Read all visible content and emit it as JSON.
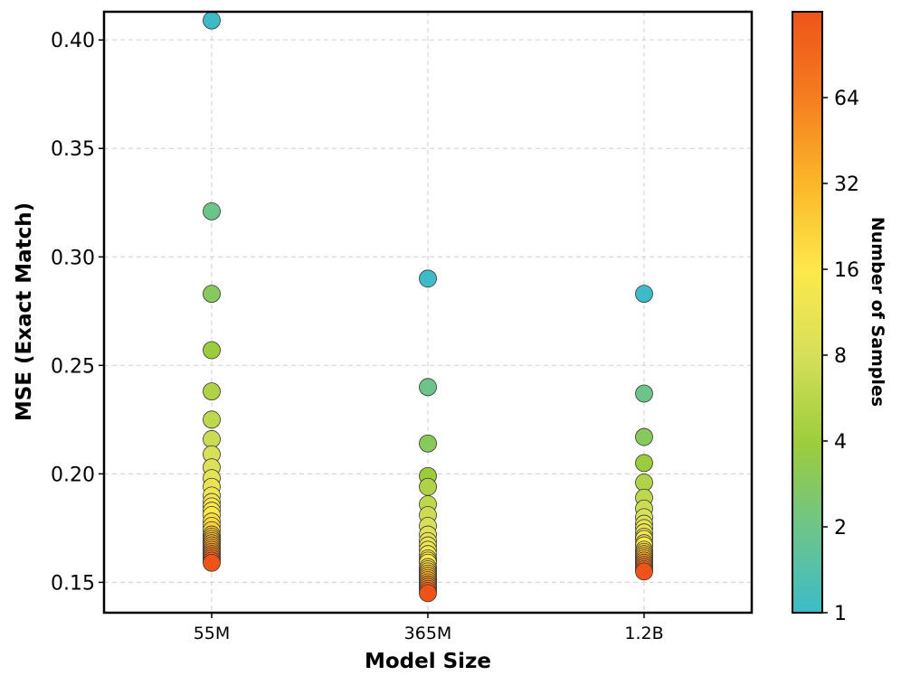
{
  "chart_data": {
    "type": "scatter",
    "xlabel": "Model Size",
    "ylabel": "MSE (Exact Match)",
    "categories": [
      "55M",
      "365M",
      "1.2B"
    ],
    "ylim": [
      0.136,
      0.413
    ],
    "yticks": [
      "0.15",
      "0.20",
      "0.25",
      "0.30",
      "0.35",
      "0.40"
    ],
    "ytick_values": [
      0.15,
      0.2,
      0.25,
      0.3,
      0.35,
      0.4
    ],
    "grid": true,
    "colorbar": {
      "label": "Number of Samples",
      "scale": "log2",
      "range": [
        1,
        128
      ],
      "ticks": [
        "1",
        "2",
        "4",
        "8",
        "16",
        "32",
        "64"
      ],
      "tick_values": [
        1,
        2,
        4,
        8,
        16,
        32,
        64
      ],
      "colormap": [
        "#3dbcc8",
        "#6dc48a",
        "#9ccc3c",
        "#d6e05a",
        "#fde84a",
        "#fbb829",
        "#f57c20",
        "#ee5419"
      ]
    },
    "series": [
      {
        "name": "55M",
        "points": [
          {
            "samples": 1,
            "mse": 0.409
          },
          {
            "samples": 2,
            "mse": 0.321
          },
          {
            "samples": 3,
            "mse": 0.283
          },
          {
            "samples": 4,
            "mse": 0.257
          },
          {
            "samples": 5,
            "mse": 0.238
          },
          {
            "samples": 6,
            "mse": 0.225
          },
          {
            "samples": 7,
            "mse": 0.216
          },
          {
            "samples": 8,
            "mse": 0.209
          },
          {
            "samples": 9,
            "mse": 0.203
          },
          {
            "samples": 10,
            "mse": 0.198
          },
          {
            "samples": 11,
            "mse": 0.194
          },
          {
            "samples": 12,
            "mse": 0.19
          },
          {
            "samples": 13,
            "mse": 0.187
          },
          {
            "samples": 14,
            "mse": 0.185
          },
          {
            "samples": 15,
            "mse": 0.183
          },
          {
            "samples": 16,
            "mse": 0.181
          },
          {
            "samples": 18,
            "mse": 0.178
          },
          {
            "samples": 20,
            "mse": 0.176
          },
          {
            "samples": 22,
            "mse": 0.174
          },
          {
            "samples": 24,
            "mse": 0.172
          },
          {
            "samples": 26,
            "mse": 0.171
          },
          {
            "samples": 28,
            "mse": 0.17
          },
          {
            "samples": 30,
            "mse": 0.169
          },
          {
            "samples": 32,
            "mse": 0.168
          },
          {
            "samples": 36,
            "mse": 0.167
          },
          {
            "samples": 40,
            "mse": 0.166
          },
          {
            "samples": 44,
            "mse": 0.165
          },
          {
            "samples": 48,
            "mse": 0.164
          },
          {
            "samples": 56,
            "mse": 0.163
          },
          {
            "samples": 64,
            "mse": 0.162
          },
          {
            "samples": 80,
            "mse": 0.161
          },
          {
            "samples": 96,
            "mse": 0.16
          },
          {
            "samples": 128,
            "mse": 0.159
          }
        ]
      },
      {
        "name": "365M",
        "points": [
          {
            "samples": 1,
            "mse": 0.29
          },
          {
            "samples": 2,
            "mse": 0.24
          },
          {
            "samples": 3,
            "mse": 0.214
          },
          {
            "samples": 4,
            "mse": 0.199
          },
          {
            "samples": 5,
            "mse": 0.194
          },
          {
            "samples": 6,
            "mse": 0.186
          },
          {
            "samples": 7,
            "mse": 0.181
          },
          {
            "samples": 8,
            "mse": 0.176
          },
          {
            "samples": 9,
            "mse": 0.172
          },
          {
            "samples": 10,
            "mse": 0.169
          },
          {
            "samples": 11,
            "mse": 0.167
          },
          {
            "samples": 12,
            "mse": 0.165
          },
          {
            "samples": 13,
            "mse": 0.163
          },
          {
            "samples": 14,
            "mse": 0.161
          },
          {
            "samples": 15,
            "mse": 0.16
          },
          {
            "samples": 16,
            "mse": 0.159
          },
          {
            "samples": 18,
            "mse": 0.157
          },
          {
            "samples": 20,
            "mse": 0.156
          },
          {
            "samples": 22,
            "mse": 0.155
          },
          {
            "samples": 24,
            "mse": 0.154
          },
          {
            "samples": 28,
            "mse": 0.153
          },
          {
            "samples": 32,
            "mse": 0.152
          },
          {
            "samples": 36,
            "mse": 0.151
          },
          {
            "samples": 40,
            "mse": 0.15
          },
          {
            "samples": 48,
            "mse": 0.149
          },
          {
            "samples": 56,
            "mse": 0.148
          },
          {
            "samples": 64,
            "mse": 0.147
          },
          {
            "samples": 96,
            "mse": 0.146
          },
          {
            "samples": 128,
            "mse": 0.145
          }
        ]
      },
      {
        "name": "1.2B",
        "points": [
          {
            "samples": 1,
            "mse": 0.283
          },
          {
            "samples": 2,
            "mse": 0.237
          },
          {
            "samples": 3,
            "mse": 0.217
          },
          {
            "samples": 4,
            "mse": 0.205
          },
          {
            "samples": 5,
            "mse": 0.196
          },
          {
            "samples": 6,
            "mse": 0.189
          },
          {
            "samples": 7,
            "mse": 0.184
          },
          {
            "samples": 8,
            "mse": 0.18
          },
          {
            "samples": 9,
            "mse": 0.177
          },
          {
            "samples": 10,
            "mse": 0.175
          },
          {
            "samples": 11,
            "mse": 0.173
          },
          {
            "samples": 12,
            "mse": 0.171
          },
          {
            "samples": 13,
            "mse": 0.17
          },
          {
            "samples": 14,
            "mse": 0.168
          },
          {
            "samples": 16,
            "mse": 0.167
          },
          {
            "samples": 18,
            "mse": 0.165
          },
          {
            "samples": 20,
            "mse": 0.164
          },
          {
            "samples": 24,
            "mse": 0.163
          },
          {
            "samples": 28,
            "mse": 0.162
          },
          {
            "samples": 32,
            "mse": 0.161
          },
          {
            "samples": 40,
            "mse": 0.16
          },
          {
            "samples": 48,
            "mse": 0.159
          },
          {
            "samples": 56,
            "mse": 0.158
          },
          {
            "samples": 64,
            "mse": 0.157
          },
          {
            "samples": 96,
            "mse": 0.156
          },
          {
            "samples": 128,
            "mse": 0.155
          }
        ]
      }
    ]
  }
}
